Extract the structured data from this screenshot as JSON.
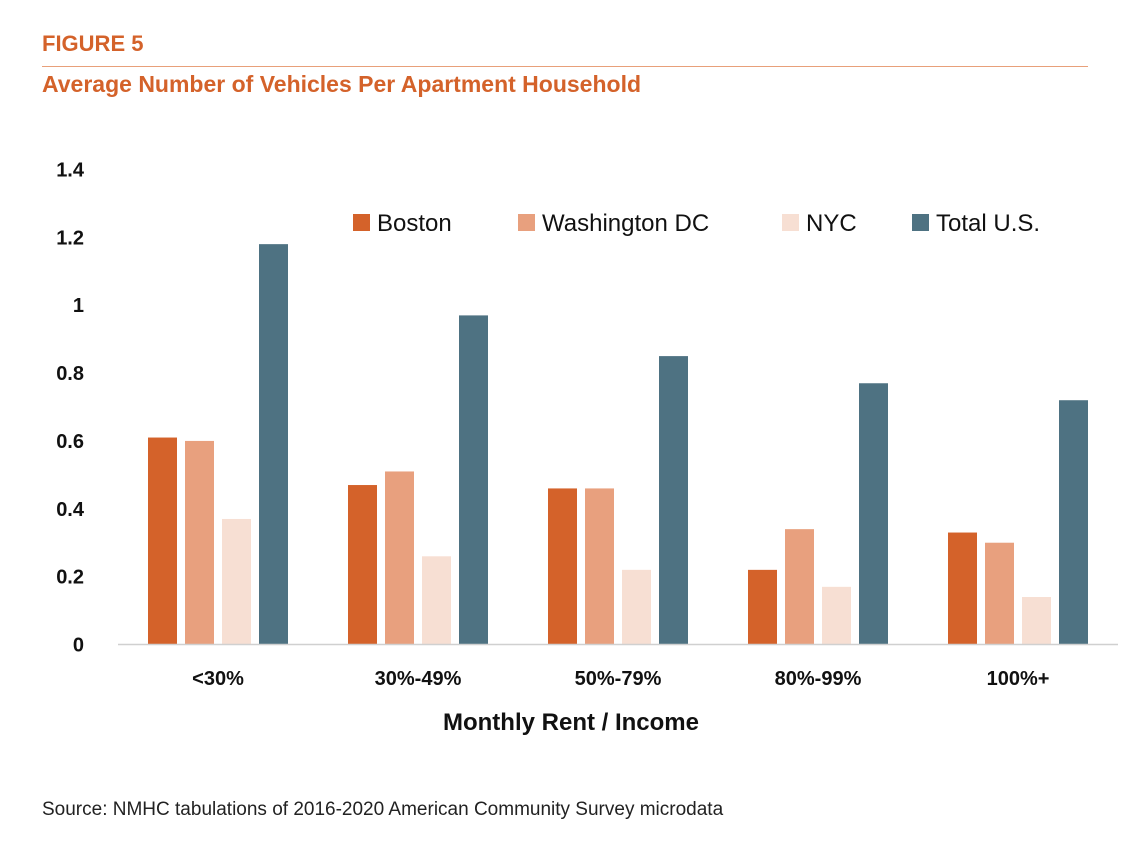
{
  "header": {
    "figure_label": "FIGURE 5",
    "title": "Average Number of Vehicles Per Apartment Household"
  },
  "footer": {
    "source": "Source: NMHC tabulations of 2016-2020 American Community Survey microdata"
  },
  "chart_data": {
    "type": "bar",
    "title": "Average Number of Vehicles Per Apartment Household",
    "xlabel": "Monthly Rent / Income",
    "ylabel": "",
    "ylim": [
      0,
      1.4
    ],
    "yticks": [
      "0",
      "0.2",
      "0.4",
      "0.6",
      "0.8",
      "1",
      "1.2",
      "1.4"
    ],
    "categories": [
      "<30%",
      "30%-49%",
      "50%-79%",
      "80%-99%",
      "100%+"
    ],
    "grid": false,
    "legend_position": "top-right",
    "series": [
      {
        "name": "Boston",
        "color": "#d4622a",
        "values": [
          0.61,
          0.47,
          0.46,
          0.22,
          0.33
        ]
      },
      {
        "name": "Washington DC",
        "color": "#e8a07e",
        "values": [
          0.6,
          0.51,
          0.46,
          0.34,
          0.3
        ]
      },
      {
        "name": "NYC",
        "color": "#f7dfd3",
        "values": [
          0.37,
          0.26,
          0.22,
          0.17,
          0.14
        ]
      },
      {
        "name": "Total U.S.",
        "color": "#4e7282",
        "values": [
          1.18,
          0.97,
          0.85,
          0.77,
          0.72
        ]
      }
    ]
  }
}
